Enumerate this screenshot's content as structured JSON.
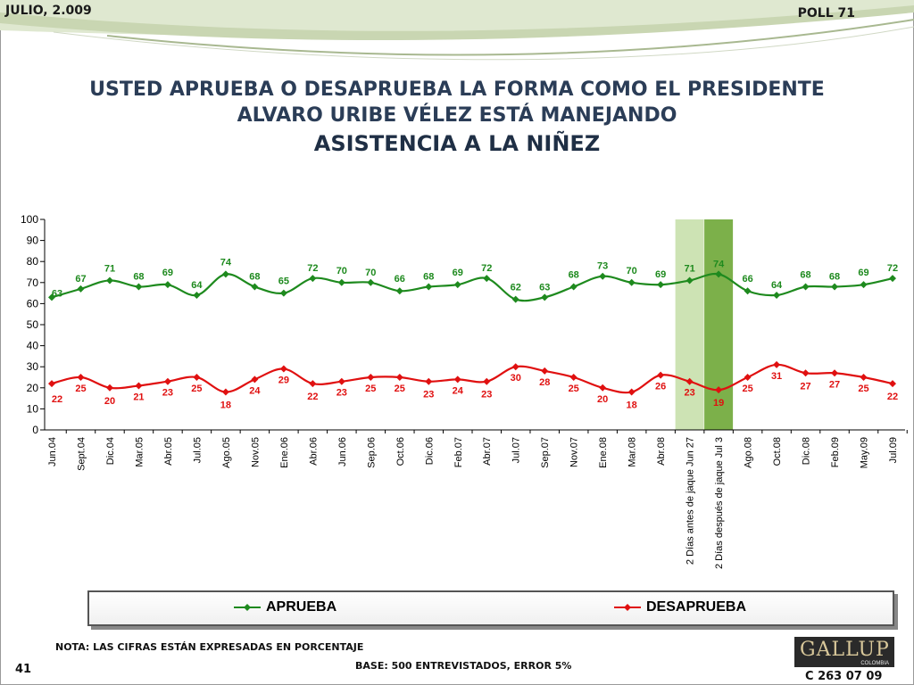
{
  "header": {
    "date": "JULIO, 2.009",
    "poll": "POLL 71"
  },
  "title": {
    "line1": "USTED APRUEBA O DESAPRUEBA LA FORMA COMO EL PRESIDENTE",
    "line2": "ALVARO URIBE VÉLEZ ESTÁ MANEJANDO",
    "line3": "ASISTENCIA A LA NIÑEZ"
  },
  "colors": {
    "aprueba": "#1e8a1e",
    "desaprueba": "#e01010",
    "label_green": "#1e8a1e",
    "label_red": "#e01010",
    "highlight_light": "#cde3b4",
    "highlight_dark": "#7cb04a"
  },
  "chart_data": {
    "type": "line",
    "categories": [
      "Jun.04",
      "Sept.04",
      "Dic.04",
      "Mar.05",
      "Abr.05",
      "Jul.05",
      "Ago.05",
      "Nov.05",
      "Ene.06",
      "Abr.06",
      "Jun.06",
      "Sep.06",
      "Oct.06",
      "Dic.06",
      "Feb.07",
      "Abr.07",
      "Jul.07",
      "Sep.07",
      "Nov.07",
      "Ene.08",
      "Mar.08",
      "Abr.08",
      "2 Días antes de jaque Jun 27",
      "2 Días después de jaque Jul 3",
      "Ago.08",
      "Oct.08",
      "Dic.08",
      "Feb.09",
      "May.09",
      "Jul.09"
    ],
    "series": [
      {
        "name": "APRUEBA",
        "values": [
          63,
          67,
          71,
          68,
          69,
          64,
          74,
          68,
          65,
          72,
          70,
          70,
          66,
          68,
          69,
          72,
          62,
          63,
          68,
          73,
          70,
          69,
          71,
          74,
          66,
          64,
          68,
          68,
          69,
          72
        ]
      },
      {
        "name": "DESAPRUEBA",
        "values": [
          22,
          25,
          20,
          21,
          23,
          25,
          18,
          24,
          29,
          22,
          23,
          25,
          25,
          23,
          24,
          23,
          30,
          28,
          25,
          20,
          18,
          26,
          23,
          19,
          25,
          31,
          27,
          27,
          25,
          22
        ]
      }
    ],
    "ylim": [
      0,
      100
    ],
    "yticks": [
      0,
      10,
      20,
      30,
      40,
      50,
      60,
      70,
      80,
      90,
      100
    ],
    "highlighted_categories": [
      "2 Días antes de jaque Jun 27",
      "2 Días después de jaque Jul 3"
    ],
    "legend": "bottom"
  },
  "footer": {
    "note": "NOTA: LAS CIFRAS ESTÁN EXPRESADAS EN PORCENTAJE",
    "base": "BASE: 500 ENTREVISTADOS, ERROR 5%",
    "page": "41",
    "code": "C 263 07 09"
  },
  "logo": {
    "brand": "GALLUP",
    "sub": "COLOMBIA"
  }
}
